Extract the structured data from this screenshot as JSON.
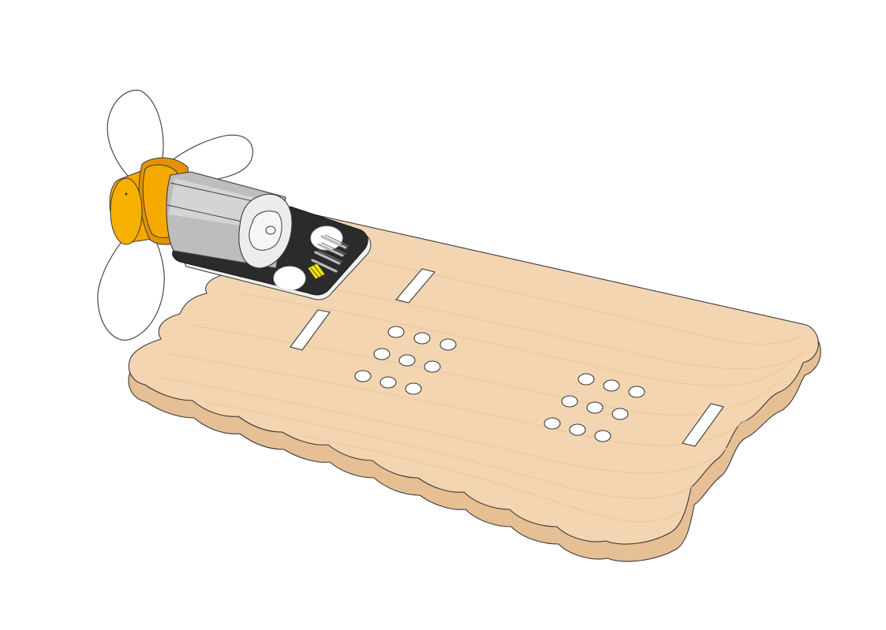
{
  "illustration": {
    "subject": "fan-motor-module-on-wooden-base",
    "colors": {
      "background": "#ffffff",
      "wood": "#f3d5b2",
      "wood_edge": "#e2b98e",
      "wood_grain": "#e9c49c",
      "outline": "#3a3a3a",
      "propeller": "#ffffff",
      "hub": "#f5a800",
      "hub_dark": "#e29300",
      "motor_body": "#bdbdbd",
      "motor_light": "#d6d6d6",
      "motor_cap": "#e8e8e8",
      "pcb": "#2b2b2b",
      "pin": "#b0b0b0",
      "connector": "#f7e300"
    },
    "parts": [
      "propeller",
      "propeller-hub",
      "dc-motor",
      "motor-pcb-module",
      "header-pins",
      "wooden-base-plate"
    ]
  }
}
